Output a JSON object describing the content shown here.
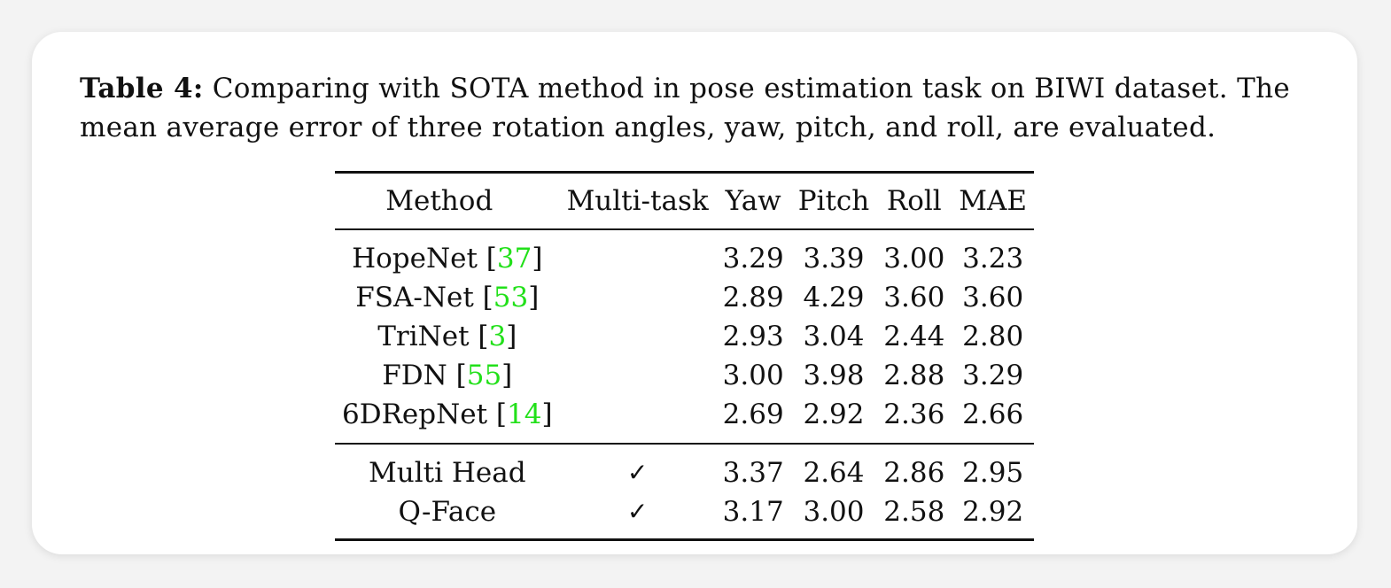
{
  "caption": {
    "label": "Table 4:",
    "text": " Comparing with SOTA method in pose estimation task on BIWI dataset. The mean average error of three rotation angles, yaw, pitch, and roll, are evaluated."
  },
  "table": {
    "headers": [
      "Method",
      "Multi-task",
      "Yaw",
      "Pitch",
      "Roll",
      "MAE"
    ],
    "sota_rows": [
      {
        "method": "HopeNet",
        "cite": "37",
        "multitask": "",
        "yaw": "3.29",
        "pitch": "3.39",
        "roll": "3.00",
        "mae": "3.23"
      },
      {
        "method": "FSA-Net",
        "cite": "53",
        "multitask": "",
        "yaw": "2.89",
        "pitch": "4.29",
        "roll": "3.60",
        "mae": "3.60"
      },
      {
        "method": "TriNet",
        "cite": "3",
        "multitask": "",
        "yaw": "2.93",
        "pitch": "3.04",
        "roll": "2.44",
        "mae": "2.80"
      },
      {
        "method": "FDN",
        "cite": "55",
        "multitask": "",
        "yaw": "3.00",
        "pitch": "3.98",
        "roll": "2.88",
        "mae": "3.29"
      },
      {
        "method": "6DRepNet",
        "cite": "14",
        "multitask": "",
        "yaw": "2.69",
        "pitch": "2.92",
        "roll": "2.36",
        "mae": "2.66"
      }
    ],
    "our_rows": [
      {
        "method": "Multi Head",
        "multitask": "✓",
        "yaw": "3.37",
        "pitch": "2.64",
        "roll": "2.86",
        "mae": "2.95"
      },
      {
        "method": "Q-Face",
        "multitask": "✓",
        "yaw": "3.17",
        "pitch": "3.00",
        "roll": "2.58",
        "mae": "2.92"
      }
    ]
  }
}
